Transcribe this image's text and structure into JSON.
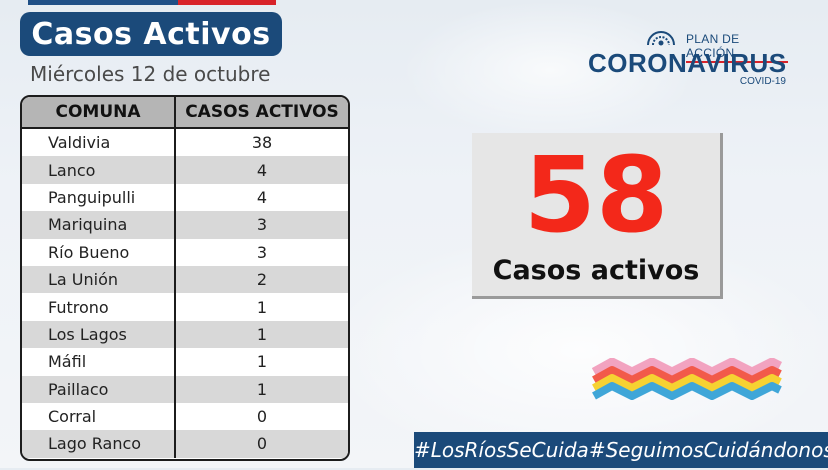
{
  "title": "Casos Activos",
  "date": "Miércoles 12 de octubre",
  "table": {
    "headers": [
      "COMUNA",
      "CASOS ACTIVOS"
    ],
    "rows": [
      {
        "comuna": "Valdivia",
        "casos": "38"
      },
      {
        "comuna": "Lanco",
        "casos": "4"
      },
      {
        "comuna": "Panguipulli",
        "casos": "4"
      },
      {
        "comuna": "Mariquina",
        "casos": "3"
      },
      {
        "comuna": "Río Bueno",
        "casos": "3"
      },
      {
        "comuna": "La Unión",
        "casos": "2"
      },
      {
        "comuna": "Futrono",
        "casos": "1"
      },
      {
        "comuna": "Los Lagos",
        "casos": "1"
      },
      {
        "comuna": "Máfil",
        "casos": "1"
      },
      {
        "comuna": "Paillaco",
        "casos": "1"
      },
      {
        "comuna": "Corral",
        "casos": "0"
      },
      {
        "comuna": "Lago Ranco",
        "casos": "0"
      }
    ]
  },
  "logo": {
    "plan": "PLAN DE ACCIÓN",
    "name": "CORONAVIRUS",
    "sub": "COVID-19"
  },
  "summary": {
    "total": "58",
    "label": "Casos activos"
  },
  "hashtags": [
    "#LosRíosSeCuida",
    "#SeguimosCuidándonos"
  ],
  "colors": {
    "brand_blue": "#1b4a7a",
    "brand_red": "#d8232a",
    "number_red": "#f3281a"
  }
}
